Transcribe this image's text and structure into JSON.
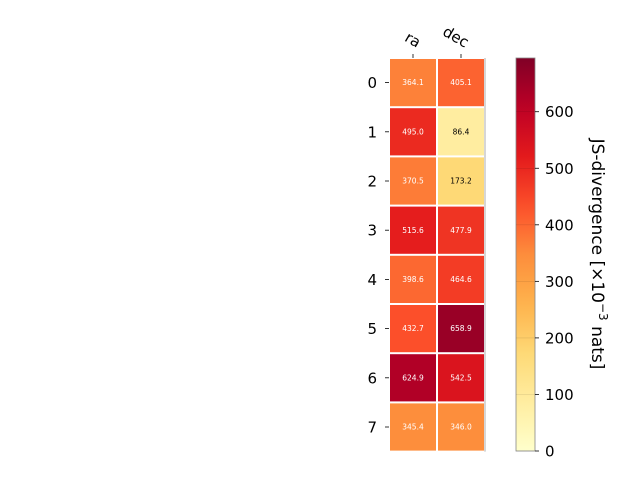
{
  "chart_data": {
    "type": "heatmap",
    "columns": [
      "ra",
      "dec"
    ],
    "rows": [
      "0",
      "1",
      "2",
      "3",
      "4",
      "5",
      "6",
      "7"
    ],
    "values": [
      [
        364.1,
        405.1
      ],
      [
        495.0,
        86.4
      ],
      [
        370.5,
        173.2
      ],
      [
        515.6,
        477.9
      ],
      [
        398.6,
        464.6
      ],
      [
        432.7,
        658.9
      ],
      [
        624.9,
        542.5
      ],
      [
        345.4,
        346.0
      ]
    ],
    "value_format": "0.1f",
    "colormap": "YlOrRd",
    "colorbar": {
      "label_prefix": "JS-divergence [×10",
      "label_exp": "−3",
      "label_suffix": " nats]",
      "range": [
        0,
        695
      ],
      "ticks": [
        0,
        100,
        200,
        300,
        400,
        500,
        600
      ]
    },
    "cell_text_colors": {
      "light": "#ffffff",
      "dark": "#000000"
    }
  }
}
